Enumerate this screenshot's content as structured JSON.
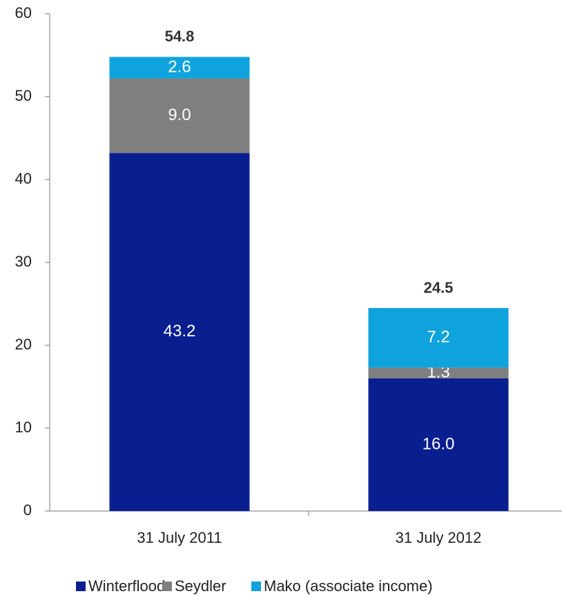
{
  "chart_data": {
    "type": "stacked_bar",
    "categories": [
      "31 July 2011",
      "31 July 2012"
    ],
    "series": [
      {
        "name": "Winterflood",
        "color": "#0a1f8f",
        "values": [
          43.2,
          16.0
        ],
        "value_labels": [
          "43.2",
          "16.0"
        ]
      },
      {
        "name": "Seydler",
        "color": "#7f7f7f",
        "values": [
          9.0,
          1.3
        ],
        "value_labels": [
          "9.0",
          "1.3"
        ]
      },
      {
        "name": "Mako (associate income)",
        "color": "#0fa3dd",
        "values": [
          2.6,
          7.2
        ],
        "value_labels": [
          "2.6",
          "7.2"
        ]
      }
    ],
    "totals": [
      54.8,
      24.5
    ],
    "ylim": [
      0,
      60
    ],
    "yticks": [
      0,
      10,
      20,
      30,
      40,
      50,
      60
    ],
    "legend": "bottom"
  }
}
